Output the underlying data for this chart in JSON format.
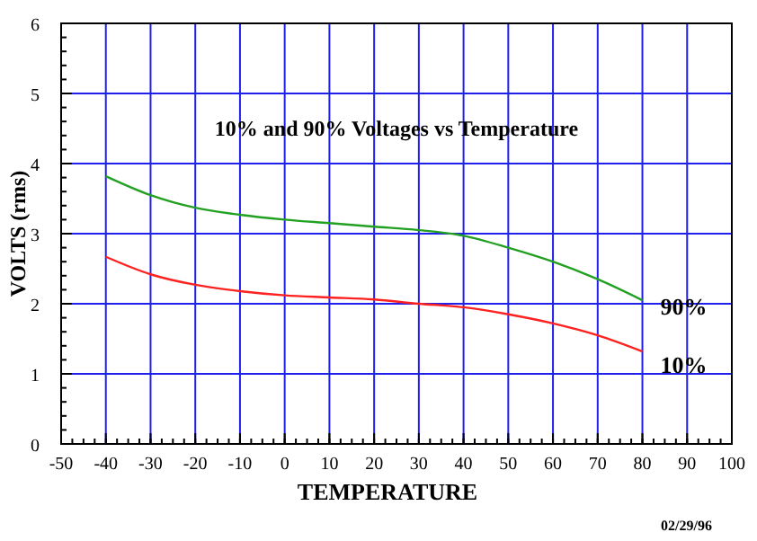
{
  "chart_data": {
    "type": "line",
    "title": "10% and 90% Voltages vs Temperature",
    "xlabel": "TEMPERATURE",
    "ylabel": "VOLTS (rms)",
    "annotations": [
      "02/29/96"
    ],
    "x": [
      -40,
      -30,
      -20,
      -10,
      0,
      10,
      20,
      30,
      40,
      50,
      60,
      70,
      80
    ],
    "series": [
      {
        "name": "90%",
        "color": "#22a022",
        "values": [
          3.82,
          3.55,
          3.37,
          3.27,
          3.2,
          3.15,
          3.1,
          3.05,
          2.97,
          2.8,
          2.6,
          2.35,
          2.05
        ]
      },
      {
        "name": "10%",
        "color": "#ff2020",
        "values": [
          2.67,
          2.42,
          2.27,
          2.18,
          2.12,
          2.09,
          2.06,
          2.0,
          1.95,
          1.85,
          1.72,
          1.55,
          1.32
        ]
      }
    ],
    "xlim": [
      -50,
      100
    ],
    "xticks": [
      -50,
      -40,
      -30,
      -20,
      -10,
      0,
      10,
      20,
      30,
      40,
      50,
      60,
      70,
      80,
      90,
      100
    ],
    "ylim": [
      0,
      6
    ],
    "yticks": [
      0,
      1,
      2,
      3,
      4,
      5,
      6
    ],
    "grid": true,
    "marker": "none",
    "line_style": "solid"
  }
}
